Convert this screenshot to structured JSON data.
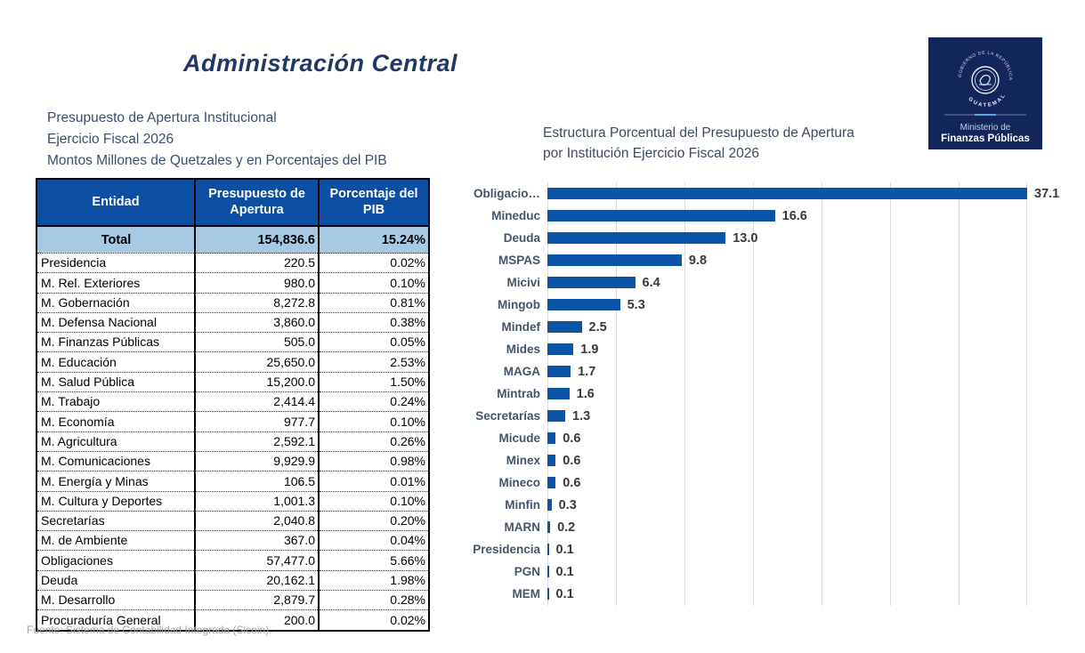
{
  "page": {
    "title": "Administración Central",
    "footer": "Fuente: Sistema de Contabilidad Integrada (Sicoin)."
  },
  "left_panel": {
    "subtitle_lines": [
      "Presupuesto de Apertura Institucional",
      "Ejercicio Fiscal 2026",
      "Montos Millones de Quetzales y en Porcentajes del PIB"
    ],
    "table": {
      "headers": [
        "Entidad",
        "Presupuesto de Apertura",
        "Porcentaje del PIB"
      ],
      "total_row": {
        "label": "Total",
        "presupuesto": "154,836.6",
        "pib": "15.24%"
      },
      "rows": [
        [
          "Presidencia",
          "220.5",
          "0.02%"
        ],
        [
          "M. Rel. Exteriores",
          "980.0",
          "0.10%"
        ],
        [
          "M. Gobernación",
          "8,272.8",
          "0.81%"
        ],
        [
          "M. Defensa Nacional",
          "3,860.0",
          "0.38%"
        ],
        [
          "M. Finanzas Públicas",
          "505.0",
          "0.05%"
        ],
        [
          "M. Educación",
          "25,650.0",
          "2.53%"
        ],
        [
          "M. Salud Pública",
          "15,200.0",
          "1.50%"
        ],
        [
          "M. Trabajo",
          "2,414.4",
          "0.24%"
        ],
        [
          "M. Economía",
          "977.7",
          "0.10%"
        ],
        [
          "M. Agricultura",
          "2,592.1",
          "0.26%"
        ],
        [
          "M. Comunicaciones",
          "9,929.9",
          "0.98%"
        ],
        [
          "M. Energía y Minas",
          "106.5",
          "0.01%"
        ],
        [
          "M. Cultura y Deportes",
          "1,001.3",
          "0.10%"
        ],
        [
          "Secretarías",
          "2,040.8",
          "0.20%"
        ],
        [
          "M. de Ambiente",
          "367.0",
          "0.04%"
        ],
        [
          "Obligaciones",
          "57,477.0",
          "5.66%"
        ],
        [
          "Deuda",
          "20,162.1",
          "1.98%"
        ],
        [
          "M. Desarrollo",
          "2,879.7",
          "0.28%"
        ],
        [
          "Procuraduría General",
          "200.0",
          "0.02%"
        ]
      ]
    }
  },
  "chart": {
    "title_lines": [
      "Estructura Porcentual del Presupuesto de Apertura",
      "por Institución Ejercicio Fiscal 2026"
    ]
  },
  "chart_data": {
    "type": "bar",
    "orientation": "horizontal",
    "title": "Estructura Porcentual del Presupuesto de Apertura por Institución Ejercicio Fiscal 2026",
    "categories": [
      "Obligacio…",
      "Mineduc",
      "Deuda",
      "MSPAS",
      "Micivi",
      "Mingob",
      "Mindef",
      "Mides",
      "MAGA",
      "Mintrab",
      "Secretarías",
      "Micude",
      "Minex",
      "Mineco",
      "Minfin",
      "MARN",
      "Presidencia",
      "PGN",
      "MEM"
    ],
    "values": [
      37.1,
      16.6,
      13.0,
      9.8,
      6.4,
      5.3,
      2.5,
      1.9,
      1.7,
      1.6,
      1.3,
      0.6,
      0.6,
      0.6,
      0.3,
      0.2,
      0.1,
      0.1,
      0.1
    ],
    "value_labels": [
      "37.1",
      "16.6",
      "13.0",
      "9.8",
      "6.4",
      "5.3",
      "2.5",
      "1.9",
      "1.7",
      "1.6",
      "1.3",
      "0.6",
      "0.6",
      "0.6",
      "0.3",
      "0.2",
      "0.1",
      "0.1",
      "0.1"
    ],
    "xlabel": "",
    "ylabel": "",
    "xlim": [
      0,
      35
    ],
    "gridline_interval": 5,
    "grid": true,
    "legend": false,
    "bars_clipped_at_axis_max": true
  },
  "logo": {
    "emblem_text_top": "GOBIERNO DE LA REPÚBLICA",
    "emblem_text_bottom": "GUATEMALA",
    "org_line1": "Ministerio de",
    "org_line2": "Finanzas Públicas"
  },
  "colors": {
    "bar_blue": "#0B54A8",
    "table_header_blue": "#0B4EA2",
    "total_row_bg": "#A6CAE1",
    "title_navy": "#1F3864",
    "subtitle_slate": "#3A4E6E",
    "chart_label_slate": "#44546A",
    "gridline_gray": "#DADADA",
    "footer_gray": "#A3A3A3",
    "logo_navy": "#13265C"
  }
}
